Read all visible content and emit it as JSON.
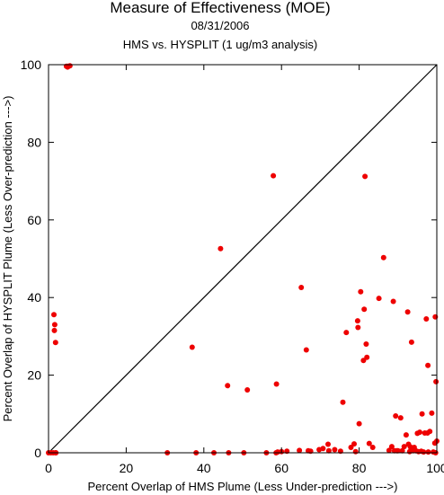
{
  "header": {
    "title": "Measure of Effectiveness (MOE)",
    "date": "08/31/2006",
    "subtitle": "HMS vs. HYSPLIT  (1 ug/m3 analysis)"
  },
  "colors": {
    "points": "#ee0000",
    "frame": "#000000"
  },
  "chart_data": {
    "type": "scatter",
    "title": "Measure of Effectiveness (MOE)",
    "subtitle": "HMS vs. HYSPLIT  (1 ug/m3 analysis)",
    "date": "08/31/2006",
    "xlabel": "Percent Overlap of HMS Plume (Less Under-prediction --->)",
    "ylabel": "Percent Overlap of HYSPLIT Plume (Less Over-prediction --->)",
    "xlim": [
      0,
      100
    ],
    "ylim": [
      0,
      100
    ],
    "xticks": [
      0,
      20,
      40,
      60,
      80,
      100
    ],
    "yticks": [
      0,
      20,
      40,
      60,
      80,
      100
    ],
    "grid": false,
    "reference_line": "y = x",
    "x": [
      4.6,
      5.0,
      5.5,
      4.9,
      0.0,
      0.6,
      1.2,
      1.8,
      1.4,
      1.6,
      1.5,
      1.8,
      1.9,
      30.6,
      37.0,
      38.0,
      42.6,
      44.3,
      46.1,
      46.4,
      50.3,
      51.2,
      56.1,
      57.9,
      58.6,
      58.7,
      59.0,
      60.0,
      61.4,
      64.6,
      65.1,
      66.4,
      66.9,
      67.5,
      69.7,
      70.7,
      72.0,
      72.2,
      73.7,
      75.2,
      75.8,
      76.7,
      77.9,
      78.7,
      79.1,
      79.6,
      79.7,
      80.0,
      80.4,
      81.1,
      81.3,
      81.5,
      81.8,
      82.0,
      82.6,
      83.5,
      85.1,
      86.3,
      87.7,
      88.4,
      88.8,
      89.1,
      89.4,
      89.7,
      90.0,
      90.7,
      91.1,
      91.6,
      92.1,
      92.5,
      92.7,
      93.0,
      93.2,
      93.5,
      93.9,
      94.2,
      94.6,
      95.0,
      95.3,
      95.6,
      96.0,
      96.2,
      96.6,
      96.9,
      97.3,
      97.6,
      97.7,
      97.8,
      98.2,
      98.7,
      99.1,
      99.5,
      99.6,
      99.7,
      99.8,
      100.0
    ],
    "y": [
      99.6,
      99.6,
      99.7,
      99.4,
      0.0,
      0.0,
      0.0,
      0.0,
      35.6,
      33.0,
      31.5,
      28.4,
      0.0,
      0.0,
      27.2,
      0.0,
      0.0,
      52.6,
      17.3,
      0.0,
      0.0,
      16.2,
      0.0,
      71.4,
      0.0,
      17.7,
      0.2,
      0.3,
      0.4,
      0.6,
      42.6,
      26.5,
      0.5,
      0.4,
      0.8,
      1.1,
      2.2,
      0.5,
      0.8,
      0.4,
      13.0,
      31.0,
      1.4,
      2.3,
      0.3,
      34.0,
      32.3,
      7.5,
      41.5,
      23.8,
      37.0,
      71.2,
      28.0,
      24.6,
      2.4,
      1.4,
      39.8,
      50.3,
      0.6,
      1.6,
      39.0,
      0.5,
      9.5,
      0.5,
      0.5,
      9.0,
      0.5,
      1.6,
      4.6,
      36.3,
      2.2,
      0.3,
      1.5,
      28.5,
      0.5,
      1.4,
      0.5,
      5.0,
      0.3,
      5.3,
      0.4,
      10.0,
      0.2,
      5.1,
      34.5,
      5.1,
      22.5,
      0.2,
      5.5,
      10.2,
      0.2,
      2.5,
      35.0,
      0.0,
      18.3,
      3.0
    ],
    "marker_color": "#ee0000"
  }
}
